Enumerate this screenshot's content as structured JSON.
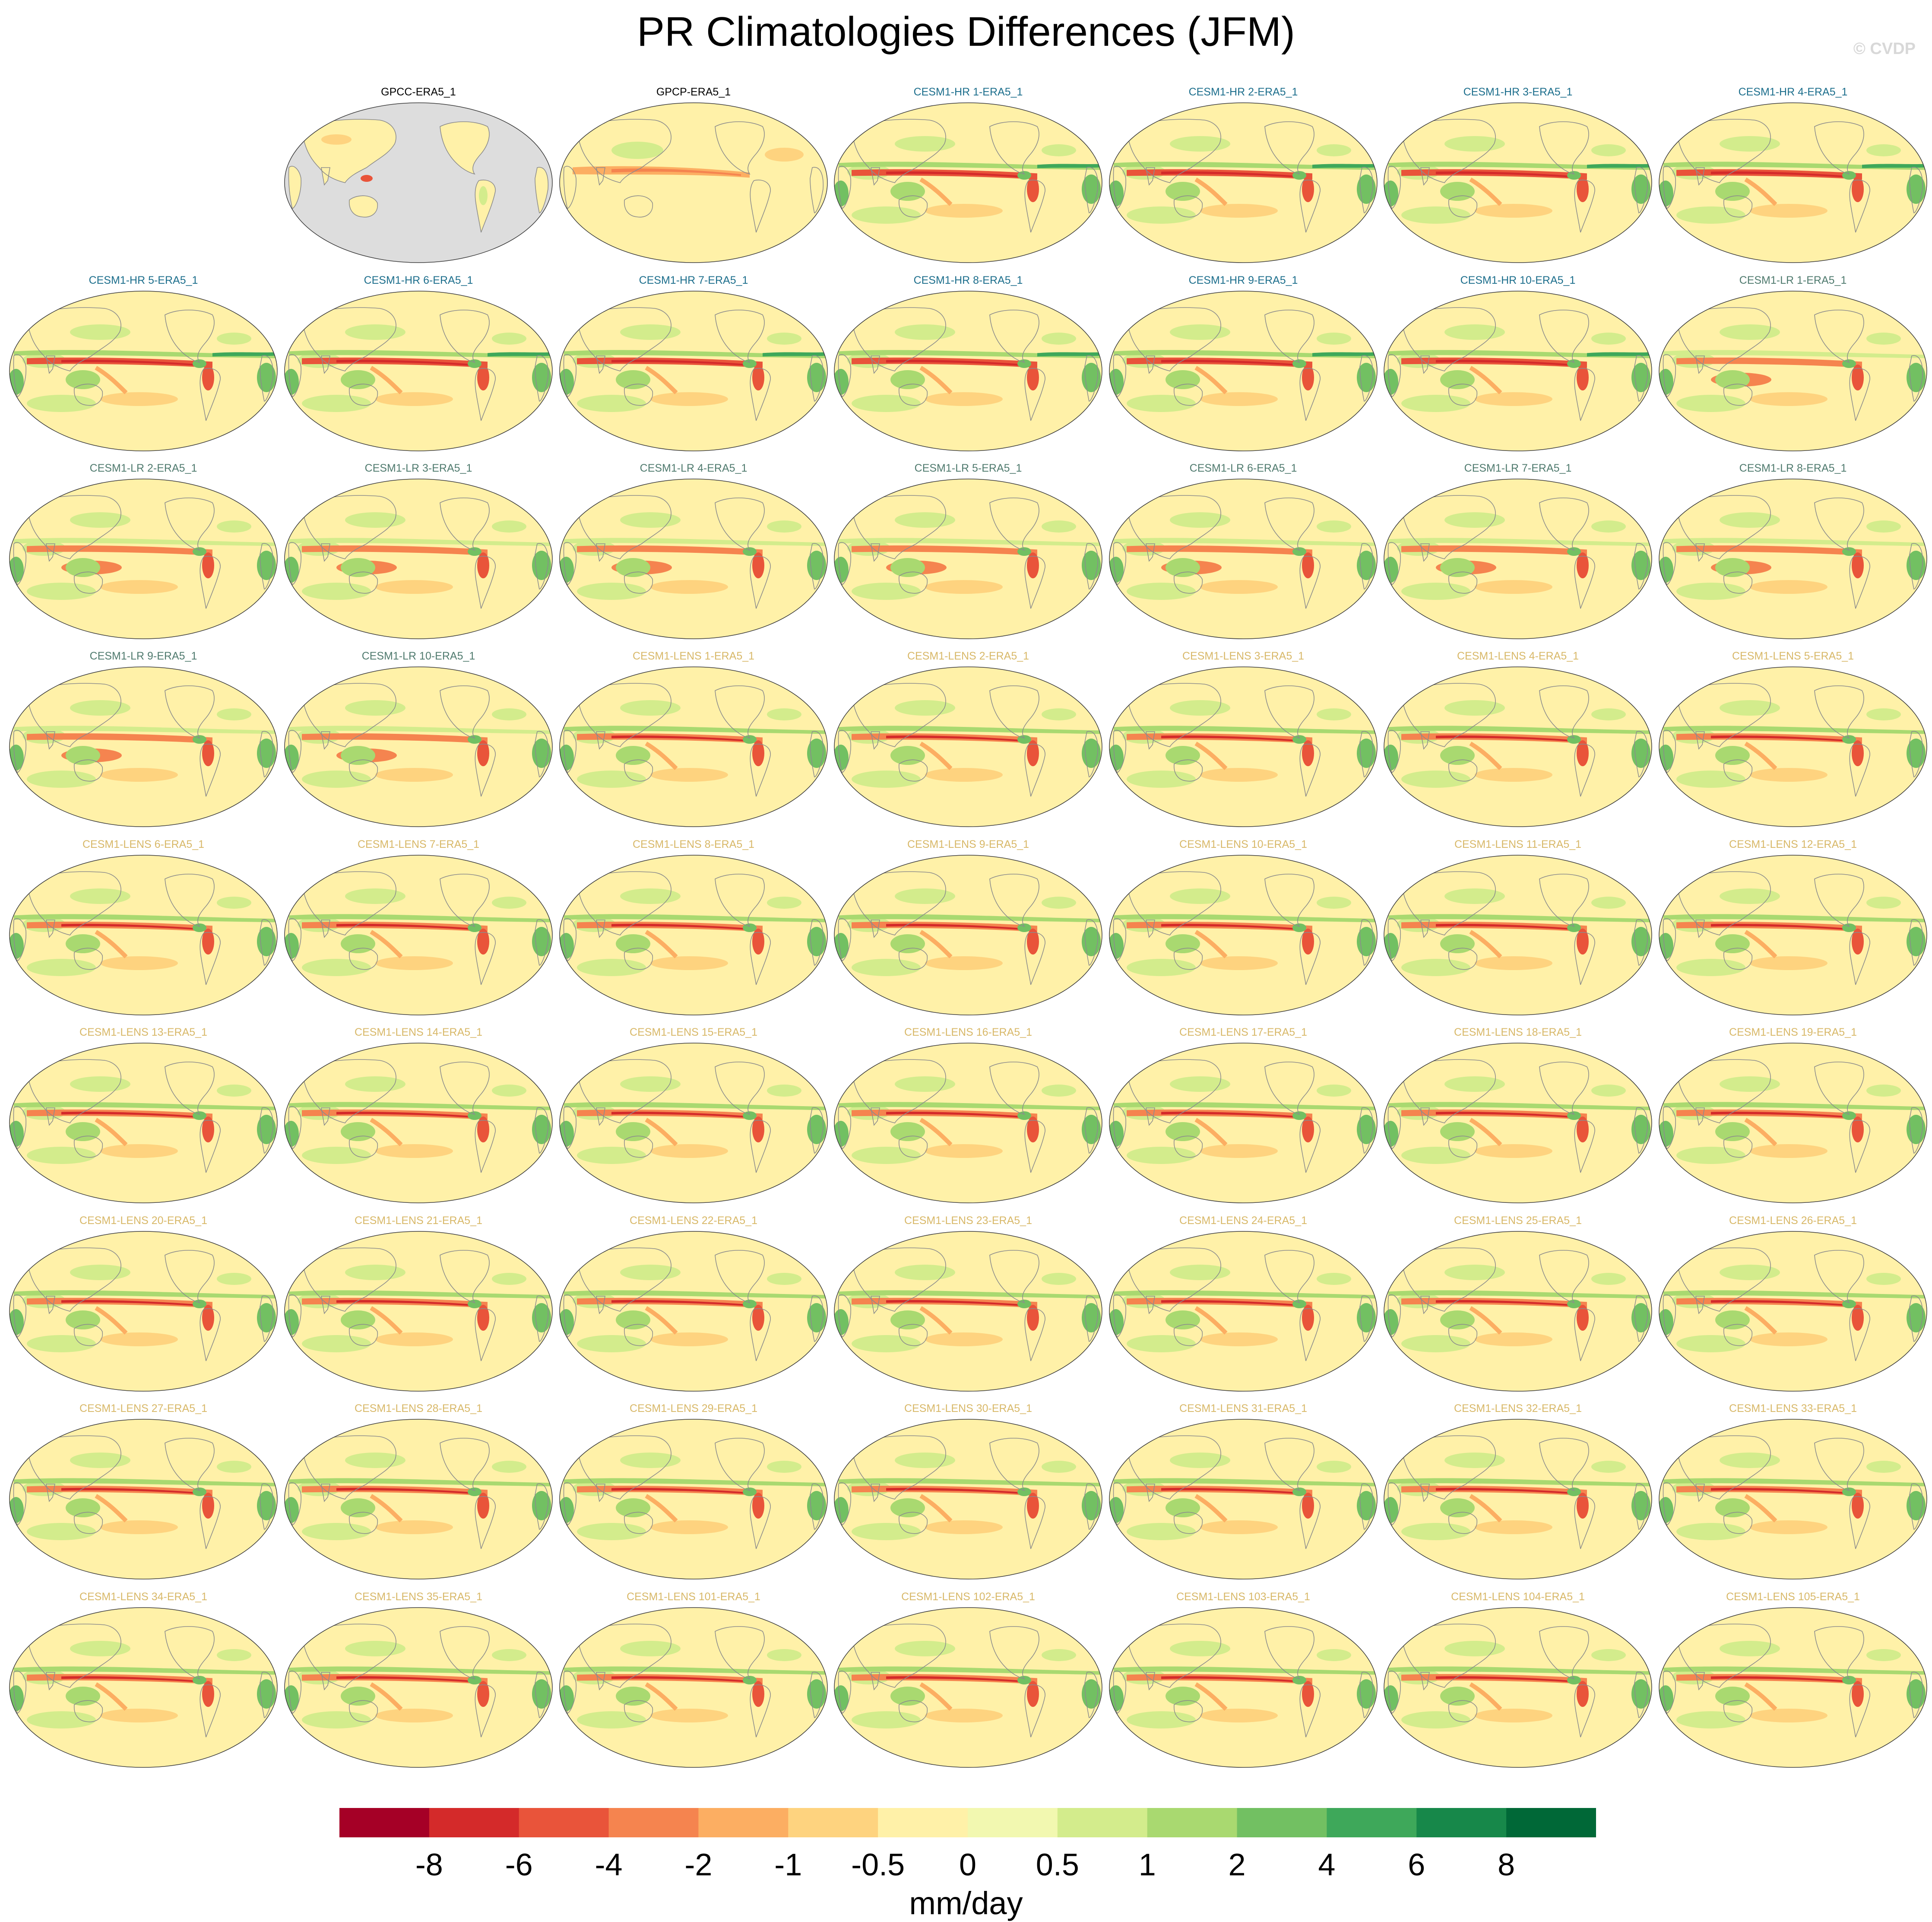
{
  "title": "PR Climatologies Differences (JFM)",
  "watermark": "© CVDP",
  "colorbar": {
    "unit": "mm/day",
    "tick_labels": [
      "-8",
      "-6",
      "-4",
      "-2",
      "-1",
      "-0.5",
      "0",
      "0.5",
      "1",
      "2",
      "4",
      "6",
      "8"
    ],
    "colors": [
      "#a50026",
      "#d42a2a",
      "#e9543a",
      "#f5844f",
      "#fcae62",
      "#fed37f",
      "#fff1a8",
      "#f2f8b0",
      "#d3ec8c",
      "#a9d970",
      "#72c062",
      "#3ea85a",
      "#17884a",
      "#006837"
    ]
  },
  "chart_data": {
    "type": "heatmap",
    "title": "PR Climatologies Differences (JFM)",
    "projection": "Robinson, Pacific-centered",
    "variable": "precipitation difference",
    "unit": "mm/day",
    "levels": [
      -8,
      -6,
      -4,
      -2,
      -1,
      -0.5,
      0,
      0.5,
      1,
      2,
      4,
      6,
      8
    ],
    "grid_columns": 7,
    "panels": [
      {
        "label": "GPCC-ERA5_1",
        "group": "obs",
        "style": "gpcc"
      },
      {
        "label": "GPCP-ERA5_1",
        "group": "obs",
        "style": "gpcp"
      },
      {
        "label": "CESM1-HR 1-ERA5_1",
        "group": "hr"
      },
      {
        "label": "CESM1-HR 2-ERA5_1",
        "group": "hr"
      },
      {
        "label": "CESM1-HR 3-ERA5_1",
        "group": "hr"
      },
      {
        "label": "CESM1-HR 4-ERA5_1",
        "group": "hr"
      },
      {
        "label": "CESM1-HR 5-ERA5_1",
        "group": "hr"
      },
      {
        "label": "CESM1-HR 6-ERA5_1",
        "group": "hr"
      },
      {
        "label": "CESM1-HR 7-ERA5_1",
        "group": "hr"
      },
      {
        "label": "CESM1-HR 8-ERA5_1",
        "group": "hr"
      },
      {
        "label": "CESM1-HR 9-ERA5_1",
        "group": "hr"
      },
      {
        "label": "CESM1-HR 10-ERA5_1",
        "group": "hr"
      },
      {
        "label": "CESM1-LR 1-ERA5_1",
        "group": "lr"
      },
      {
        "label": "CESM1-LR 2-ERA5_1",
        "group": "lr"
      },
      {
        "label": "CESM1-LR 3-ERA5_1",
        "group": "lr"
      },
      {
        "label": "CESM1-LR 4-ERA5_1",
        "group": "lr"
      },
      {
        "label": "CESM1-LR 5-ERA5_1",
        "group": "lr"
      },
      {
        "label": "CESM1-LR 6-ERA5_1",
        "group": "lr"
      },
      {
        "label": "CESM1-LR 7-ERA5_1",
        "group": "lr"
      },
      {
        "label": "CESM1-LR 8-ERA5_1",
        "group": "lr"
      },
      {
        "label": "CESM1-LR 9-ERA5_1",
        "group": "lr"
      },
      {
        "label": "CESM1-LR 10-ERA5_1",
        "group": "lr"
      },
      {
        "label": "CESM1-LENS 1-ERA5_1",
        "group": "lens"
      },
      {
        "label": "CESM1-LENS 2-ERA5_1",
        "group": "lens"
      },
      {
        "label": "CESM1-LENS 3-ERA5_1",
        "group": "lens"
      },
      {
        "label": "CESM1-LENS 4-ERA5_1",
        "group": "lens"
      },
      {
        "label": "CESM1-LENS 5-ERA5_1",
        "group": "lens"
      },
      {
        "label": "CESM1-LENS 6-ERA5_1",
        "group": "lens"
      },
      {
        "label": "CESM1-LENS 7-ERA5_1",
        "group": "lens"
      },
      {
        "label": "CESM1-LENS 8-ERA5_1",
        "group": "lens"
      },
      {
        "label": "CESM1-LENS 9-ERA5_1",
        "group": "lens"
      },
      {
        "label": "CESM1-LENS 10-ERA5_1",
        "group": "lens"
      },
      {
        "label": "CESM1-LENS 11-ERA5_1",
        "group": "lens"
      },
      {
        "label": "CESM1-LENS 12-ERA5_1",
        "group": "lens"
      },
      {
        "label": "CESM1-LENS 13-ERA5_1",
        "group": "lens"
      },
      {
        "label": "CESM1-LENS 14-ERA5_1",
        "group": "lens"
      },
      {
        "label": "CESM1-LENS 15-ERA5_1",
        "group": "lens"
      },
      {
        "label": "CESM1-LENS 16-ERA5_1",
        "group": "lens"
      },
      {
        "label": "CESM1-LENS 17-ERA5_1",
        "group": "lens"
      },
      {
        "label": "CESM1-LENS 18-ERA5_1",
        "group": "lens"
      },
      {
        "label": "CESM1-LENS 19-ERA5_1",
        "group": "lens"
      },
      {
        "label": "CESM1-LENS 20-ERA5_1",
        "group": "lens"
      },
      {
        "label": "CESM1-LENS 21-ERA5_1",
        "group": "lens"
      },
      {
        "label": "CESM1-LENS 22-ERA5_1",
        "group": "lens"
      },
      {
        "label": "CESM1-LENS 23-ERA5_1",
        "group": "lens"
      },
      {
        "label": "CESM1-LENS 24-ERA5_1",
        "group": "lens"
      },
      {
        "label": "CESM1-LENS 25-ERA5_1",
        "group": "lens"
      },
      {
        "label": "CESM1-LENS 26-ERA5_1",
        "group": "lens"
      },
      {
        "label": "CESM1-LENS 27-ERA5_1",
        "group": "lens"
      },
      {
        "label": "CESM1-LENS 28-ERA5_1",
        "group": "lens"
      },
      {
        "label": "CESM1-LENS 29-ERA5_1",
        "group": "lens"
      },
      {
        "label": "CESM1-LENS 30-ERA5_1",
        "group": "lens"
      },
      {
        "label": "CESM1-LENS 31-ERA5_1",
        "group": "lens"
      },
      {
        "label": "CESM1-LENS 32-ERA5_1",
        "group": "lens"
      },
      {
        "label": "CESM1-LENS 33-ERA5_1",
        "group": "lens"
      },
      {
        "label": "CESM1-LENS 34-ERA5_1",
        "group": "lens"
      },
      {
        "label": "CESM1-LENS 35-ERA5_1",
        "group": "lens"
      },
      {
        "label": "CESM1-LENS 101-ERA5_1",
        "group": "lens"
      },
      {
        "label": "CESM1-LENS 102-ERA5_1",
        "group": "lens"
      },
      {
        "label": "CESM1-LENS 103-ERA5_1",
        "group": "lens"
      },
      {
        "label": "CESM1-LENS 104-ERA5_1",
        "group": "lens"
      },
      {
        "label": "CESM1-LENS 105-ERA5_1",
        "group": "lens"
      }
    ],
    "group_title_colors": {
      "obs": "#000000",
      "hr": "#1c6e8c",
      "lr": "#4f7a6e",
      "lens": "#d8b868"
    }
  }
}
